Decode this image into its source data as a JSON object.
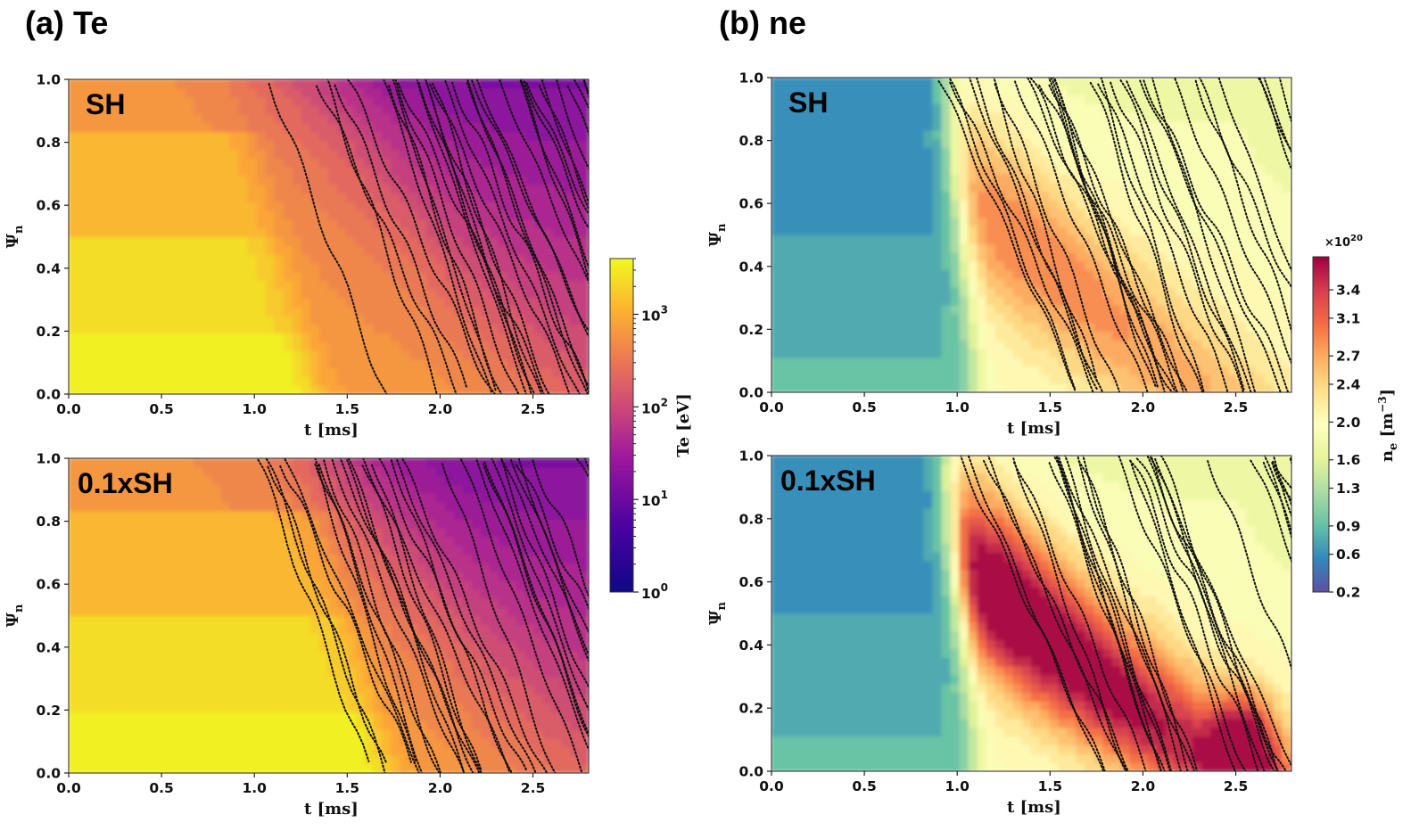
{
  "figure": {
    "panel_a_title": "(a)  Te",
    "panel_b_title": "(b)  ne"
  },
  "chart_data": [
    {
      "id": "te-sh",
      "type": "heatmap",
      "panel": "a",
      "row": 0,
      "label": "SH",
      "quantity": "Te",
      "cmap": "plasma",
      "xlabel": "t [ms]",
      "ylabel": "Ψn",
      "xlim": [
        0,
        2.8
      ],
      "ylim": [
        0,
        1
      ],
      "xticks": [
        "0.0",
        "0.5",
        "1.0",
        "1.5",
        "2.0",
        "2.5"
      ],
      "yticks": [
        "0.0",
        "0.2",
        "0.4",
        "0.6",
        "0.8",
        "1.0"
      ],
      "levels_profile": {
        "core_front_t": 1.15,
        "front_speed": 0.55,
        "edge_cold_t": 2.5
      },
      "overlay": "dotted field-line tracer trajectories"
    },
    {
      "id": "te-01sh",
      "type": "heatmap",
      "panel": "a",
      "row": 1,
      "label": "0.1xSH",
      "quantity": "Te",
      "cmap": "plasma",
      "xlabel": "t [ms]",
      "ylabel": "Ψn",
      "xlim": [
        0,
        2.8
      ],
      "ylim": [
        0,
        1
      ],
      "xticks": [
        "0.0",
        "0.5",
        "1.0",
        "1.5",
        "2.0",
        "2.5"
      ],
      "yticks": [
        "0.0",
        "0.2",
        "0.4",
        "0.6",
        "0.8",
        "1.0"
      ],
      "levels_profile": {
        "core_front_t": 1.55,
        "front_speed": 0.45,
        "edge_cold_t": 2.6
      },
      "overlay": "dotted field-line tracer trajectories"
    },
    {
      "id": "ne-sh",
      "type": "heatmap",
      "panel": "b",
      "row": 0,
      "label": "SH",
      "quantity": "ne",
      "cmap": "Spectral_r",
      "xlabel": "t [ms]",
      "ylabel": "Ψn",
      "xlim": [
        0,
        2.8
      ],
      "ylim": [
        0,
        1
      ],
      "xticks": [
        "0.0",
        "0.5",
        "1.0",
        "1.5",
        "2.0",
        "2.5"
      ],
      "yticks": [
        "0.0",
        "0.2",
        "0.4",
        "0.6",
        "0.8",
        "1.0"
      ],
      "peak_value_1e20": 2.6,
      "overlay": "dotted field-line tracer trajectories"
    },
    {
      "id": "ne-01sh",
      "type": "heatmap",
      "panel": "b",
      "row": 1,
      "label": "0.1xSH",
      "quantity": "ne",
      "cmap": "Spectral_r",
      "xlabel": "t [ms]",
      "ylabel": "Ψn",
      "xlim": [
        0,
        2.8
      ],
      "ylim": [
        0,
        1
      ],
      "xticks": [
        "0.0",
        "0.5",
        "1.0",
        "1.5",
        "2.0",
        "2.5"
      ],
      "yticks": [
        "0.0",
        "0.2",
        "0.4",
        "0.6",
        "0.8",
        "1.0"
      ],
      "peak_value_1e20": 3.7,
      "overlay": "dotted field-line tracer trajectories"
    }
  ],
  "colorbars": {
    "te": {
      "label": "Te [eV]",
      "scale": "log",
      "range": [
        1,
        4000
      ],
      "ticks": [
        {
          "value": 1,
          "base": "10",
          "exp": "0"
        },
        {
          "value": 10,
          "base": "10",
          "exp": "1"
        },
        {
          "value": 100,
          "base": "10",
          "exp": "2"
        },
        {
          "value": 1000,
          "base": "10",
          "exp": "3"
        }
      ]
    },
    "ne": {
      "label_main": "n",
      "label_sub": "e",
      "label_unit": " [m",
      "label_sup": "−3",
      "label_close": "]",
      "multiplier_base": "×10",
      "multiplier_exp": "20",
      "range": [
        0.2,
        3.75
      ],
      "ticks": [
        "0.2",
        "0.6",
        "0.9",
        "1.3",
        "1.6",
        "2.0",
        "2.4",
        "2.7",
        "3.1",
        "3.4"
      ]
    }
  },
  "colors": {
    "plasma": [
      "#0d0887",
      "#6a00a8",
      "#b12a90",
      "#e16462",
      "#fca636",
      "#f0f921"
    ],
    "spectral_r": [
      "#5e4fa2",
      "#3288bd",
      "#66c2a5",
      "#abdda4",
      "#e6f598",
      "#ffffbf",
      "#fee08b",
      "#fdae61",
      "#f46d43",
      "#d53e4f",
      "#9e0142"
    ]
  }
}
